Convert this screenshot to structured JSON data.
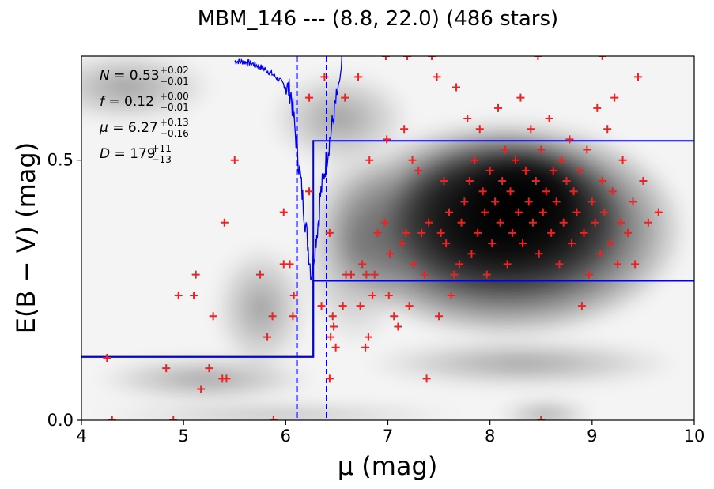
{
  "chart_data": {
    "type": "scatter",
    "title": "MBM_146 --- (8.8, 22.0) (486 stars)",
    "xlabel": "μ (mag)",
    "ylabel": "E(B − V) (mag)",
    "xlim": [
      4,
      10
    ],
    "ylim": [
      0.0,
      0.7
    ],
    "x_ticks": [
      "4",
      "5",
      "6",
      "7",
      "8",
      "9",
      "10"
    ],
    "y_ticks": [
      "0.0",
      "0.5"
    ],
    "grid": false,
    "background": "grayscale density heatmap",
    "annotations": [
      {
        "sym": "N",
        "val": "0.53",
        "sup": "+0.02",
        "sub": "−0.01"
      },
      {
        "sym": "f",
        "val": "0.12",
        "sup": "+0.00",
        "sub": "−0.01"
      },
      {
        "sym": "μ",
        "val": "6.27",
        "sup": "+0.13",
        "sub": "−0.16"
      },
      {
        "sym": "D",
        "val": "179",
        "sup": "+11",
        "sub": "−13"
      }
    ],
    "vlines": [
      6.11,
      6.4
    ],
    "model_step": {
      "x": [
        4.0,
        6.27,
        6.27,
        10.0
      ],
      "y_low": [
        0.122,
        0.122,
        0.268,
        0.268
      ],
      "y_high": [
        0.122,
        0.122,
        0.537,
        0.537
      ]
    },
    "points": [
      [
        4.25,
        0.12
      ],
      [
        4.3,
        0.0
      ],
      [
        4.83,
        0.1
      ],
      [
        4.9,
        0.0
      ],
      [
        4.95,
        0.24
      ],
      [
        5.1,
        0.24
      ],
      [
        5.12,
        0.28
      ],
      [
        5.17,
        0.06
      ],
      [
        5.25,
        0.1
      ],
      [
        5.29,
        0.2
      ],
      [
        5.38,
        0.08
      ],
      [
        5.4,
        0.38
      ],
      [
        5.42,
        0.08
      ],
      [
        5.5,
        0.5
      ],
      [
        5.75,
        0.28
      ],
      [
        5.82,
        0.16
      ],
      [
        5.87,
        0.2
      ],
      [
        5.88,
        0.0
      ],
      [
        5.98,
        0.4
      ],
      [
        5.98,
        0.3
      ],
      [
        6.04,
        0.3
      ],
      [
        6.07,
        0.2
      ],
      [
        6.08,
        0.24
      ],
      [
        6.23,
        0.62
      ],
      [
        6.23,
        0.44
      ],
      [
        6.35,
        0.22
      ],
      [
        6.38,
        0.66
      ],
      [
        6.43,
        0.08
      ],
      [
        6.43,
        0.36
      ],
      [
        6.44,
        0.16
      ],
      [
        6.46,
        0.2
      ],
      [
        6.47,
        0.18
      ],
      [
        6.49,
        0.14
      ],
      [
        6.56,
        0.22
      ],
      [
        6.58,
        0.62
      ],
      [
        6.59,
        0.28
      ],
      [
        6.64,
        0.28
      ],
      [
        6.71,
        0.66
      ],
      [
        6.73,
        0.22
      ],
      [
        6.75,
        0.3
      ],
      [
        6.78,
        0.14
      ],
      [
        6.79,
        0.28
      ],
      [
        6.81,
        0.16
      ],
      [
        6.82,
        0.5
      ],
      [
        6.85,
        0.24
      ],
      [
        6.87,
        0.28
      ],
      [
        6.9,
        0.36
      ],
      [
        6.97,
        0.38
      ],
      [
        6.98,
        0.7
      ],
      [
        6.99,
        0.54
      ],
      [
        7.01,
        0.24
      ],
      [
        7.02,
        0.32
      ],
      [
        7.06,
        0.2
      ],
      [
        7.1,
        0.18
      ],
      [
        7.14,
        0.34
      ],
      [
        7.16,
        0.56
      ],
      [
        7.18,
        0.36
      ],
      [
        7.19,
        0.7
      ],
      [
        7.21,
        0.22
      ],
      [
        7.25,
        0.3
      ],
      [
        7.24,
        0.5
      ],
      [
        7.3,
        0.48
      ],
      [
        7.33,
        0.36
      ],
      [
        7.36,
        0.28
      ],
      [
        7.38,
        0.08
      ],
      [
        7.4,
        0.38
      ],
      [
        7.43,
        0.7
      ],
      [
        7.48,
        0.66
      ],
      [
        7.5,
        0.2
      ],
      [
        7.52,
        0.36
      ],
      [
        7.55,
        0.46
      ],
      [
        7.57,
        0.34
      ],
      [
        7.6,
        0.4
      ],
      [
        7.62,
        0.24
      ],
      [
        7.65,
        0.28
      ],
      [
        7.67,
        0.64
      ],
      [
        7.7,
        0.3
      ],
      [
        7.72,
        0.38
      ],
      [
        7.75,
        0.42
      ],
      [
        7.78,
        0.58
      ],
      [
        7.8,
        0.46
      ],
      [
        7.82,
        0.32
      ],
      [
        7.85,
        0.5
      ],
      [
        7.88,
        0.36
      ],
      [
        7.9,
        0.56
      ],
      [
        7.93,
        0.44
      ],
      [
        7.95,
        0.4
      ],
      [
        7.97,
        0.28
      ],
      [
        8.0,
        0.48
      ],
      [
        8.02,
        0.34
      ],
      [
        8.05,
        0.42
      ],
      [
        8.08,
        0.6
      ],
      [
        8.1,
        0.38
      ],
      [
        8.12,
        0.46
      ],
      [
        8.15,
        0.52
      ],
      [
        8.17,
        0.3
      ],
      [
        8.2,
        0.44
      ],
      [
        8.22,
        0.36
      ],
      [
        8.25,
        0.5
      ],
      [
        8.28,
        0.4
      ],
      [
        8.3,
        0.62
      ],
      [
        8.32,
        0.34
      ],
      [
        8.35,
        0.48
      ],
      [
        8.38,
        0.42
      ],
      [
        8.4,
        0.56
      ],
      [
        8.42,
        0.38
      ],
      [
        8.45,
        0.46
      ],
      [
        8.48,
        0.32
      ],
      [
        8.5,
        0.52
      ],
      [
        8.52,
        0.4
      ],
      [
        8.55,
        0.44
      ],
      [
        8.58,
        0.58
      ],
      [
        8.6,
        0.36
      ],
      [
        8.62,
        0.48
      ],
      [
        8.65,
        0.42
      ],
      [
        8.68,
        0.3
      ],
      [
        8.7,
        0.5
      ],
      [
        8.72,
        0.38
      ],
      [
        8.75,
        0.46
      ],
      [
        8.78,
        0.54
      ],
      [
        8.8,
        0.34
      ],
      [
        8.82,
        0.44
      ],
      [
        8.85,
        0.4
      ],
      [
        8.88,
        0.48
      ],
      [
        8.9,
        0.22
      ],
      [
        8.92,
        0.36
      ],
      [
        8.95,
        0.52
      ],
      [
        8.97,
        0.28
      ],
      [
        9.0,
        0.42
      ],
      [
        9.03,
        0.38
      ],
      [
        9.05,
        0.6
      ],
      [
        9.08,
        0.32
      ],
      [
        9.1,
        0.46
      ],
      [
        9.12,
        0.4
      ],
      [
        9.15,
        0.56
      ],
      [
        9.18,
        0.34
      ],
      [
        9.2,
        0.44
      ],
      [
        9.22,
        0.62
      ],
      [
        9.25,
        0.3
      ],
      [
        9.28,
        0.38
      ],
      [
        9.3,
        0.5
      ],
      [
        9.35,
        0.36
      ],
      [
        9.4,
        0.42
      ],
      [
        9.42,
        0.3
      ],
      [
        9.45,
        0.66
      ],
      [
        9.5,
        0.46
      ],
      [
        9.55,
        0.38
      ],
      [
        9.65,
        0.4
      ],
      [
        9.1,
        0.7
      ],
      [
        8.5,
        0.0
      ],
      [
        8.47,
        0.7
      ]
    ]
  }
}
